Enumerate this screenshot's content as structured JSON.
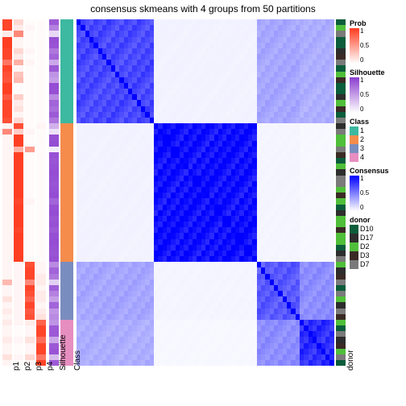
{
  "title": "consensus skmeans with 4 groups from 50 partitions",
  "layout": {
    "heatmapLeft": 95,
    "heatmapWidth": 320,
    "heatmapTop": 24,
    "heatmapHeight": 430
  },
  "palettes": {
    "prob": {
      "low": "#ffffff",
      "high": "#ff3b1f"
    },
    "silhouette": {
      "low": "#ffffff",
      "high": "#8b3dcf"
    },
    "consensus": {
      "low": "#ffffff",
      "high": "#0000ff"
    },
    "gray": "#bfbfbf"
  },
  "classColors": {
    "1": "#3cb9a0",
    "2": "#f58c4b",
    "3": "#7a8dbf",
    "4": "#e68ec0"
  },
  "donorColors": {
    "D10": "#0b5d3b",
    "D17": "#2d2d2d",
    "D2": "#4fbf3a",
    "D3": "#3a2a25",
    "D7": "#7a7a7a"
  },
  "annotationTracks": [
    {
      "id": "p1",
      "x": 3,
      "w": 12,
      "type": "prob"
    },
    {
      "id": "p2",
      "x": 17,
      "w": 12,
      "type": "prob"
    },
    {
      "id": "p3",
      "x": 31,
      "w": 12,
      "type": "prob"
    },
    {
      "id": "p4",
      "x": 45,
      "w": 12,
      "type": "prob"
    },
    {
      "id": "Silhouette",
      "x": 61,
      "w": 12,
      "type": "silhouette"
    },
    {
      "id": "Class",
      "x": 75,
      "w": 16,
      "type": "class"
    }
  ],
  "donorLabelX": 417,
  "classBlocks": [
    {
      "class": 1,
      "count": 18
    },
    {
      "class": 2,
      "count": 24
    },
    {
      "class": 3,
      "count": 10
    },
    {
      "class": 4,
      "count": 8
    }
  ],
  "rows": [
    {
      "p1": 0.95,
      "p2": 0.2,
      "p3": 0.02,
      "p4": 0.02,
      "sil": 0.85,
      "cls": 1,
      "dn": "D10"
    },
    {
      "p1": 0.95,
      "p2": 0.1,
      "p3": 0.05,
      "p4": 0.02,
      "sil": 0.65,
      "cls": 1,
      "dn": "D2"
    },
    {
      "p1": 0.1,
      "p2": 0.6,
      "p3": 0.02,
      "p4": 0.02,
      "sil": 0.2,
      "cls": 1,
      "dn": "D7"
    },
    {
      "p1": 0.98,
      "p2": 0.05,
      "p3": 0.02,
      "p4": 0.02,
      "sil": 0.9,
      "cls": 1,
      "dn": "D10"
    },
    {
      "p1": 0.98,
      "p2": 0.05,
      "p3": 0.02,
      "p4": 0.02,
      "sil": 0.88,
      "cls": 1,
      "dn": "D10"
    },
    {
      "p1": 0.95,
      "p2": 0.2,
      "p3": 0.05,
      "p4": 0.02,
      "sil": 0.7,
      "cls": 1,
      "dn": "D17"
    },
    {
      "p1": 0.95,
      "p2": 0.1,
      "p3": 0.02,
      "p4": 0.02,
      "sil": 0.8,
      "cls": 1,
      "dn": "D3"
    },
    {
      "p1": 0.7,
      "p2": 0.4,
      "p3": 0.05,
      "p4": 0.02,
      "sil": 0.45,
      "cls": 1,
      "dn": "D7"
    },
    {
      "p1": 0.95,
      "p2": 0.05,
      "p3": 0.02,
      "p4": 0.02,
      "sil": 0.85,
      "cls": 1,
      "dn": "D10"
    },
    {
      "p1": 0.9,
      "p2": 0.3,
      "p3": 0.02,
      "p4": 0.02,
      "sil": 0.55,
      "cls": 1,
      "dn": "D2"
    },
    {
      "p1": 0.88,
      "p2": 0.35,
      "p3": 0.02,
      "p4": 0.02,
      "sil": 0.5,
      "cls": 1,
      "dn": "D3"
    },
    {
      "p1": 0.98,
      "p2": 0.02,
      "p3": 0.02,
      "p4": 0.02,
      "sil": 0.92,
      "cls": 1,
      "dn": "D10"
    },
    {
      "p1": 0.98,
      "p2": 0.02,
      "p3": 0.02,
      "p4": 0.02,
      "sil": 0.9,
      "cls": 1,
      "dn": "D10"
    },
    {
      "p1": 0.85,
      "p2": 0.25,
      "p3": 0.02,
      "p4": 0.02,
      "sil": 0.6,
      "cls": 1,
      "dn": "D17"
    },
    {
      "p1": 0.95,
      "p2": 0.1,
      "p3": 0.02,
      "p4": 0.02,
      "sil": 0.8,
      "cls": 1,
      "dn": "D2"
    },
    {
      "p1": 0.95,
      "p2": 0.15,
      "p3": 0.02,
      "p4": 0.02,
      "sil": 0.75,
      "cls": 1,
      "dn": "D3"
    },
    {
      "p1": 0.95,
      "p2": 0.05,
      "p3": 0.02,
      "p4": 0.02,
      "sil": 0.85,
      "cls": 1,
      "dn": "D10"
    },
    {
      "p1": 0.9,
      "p2": 0.2,
      "p3": 0.02,
      "p4": 0.02,
      "sil": 0.7,
      "cls": 1,
      "dn": "D7"
    },
    {
      "p1": 0.05,
      "p2": 0.9,
      "p3": 0.02,
      "p4": 0.05,
      "sil": 0.4,
      "cls": 2,
      "dn": "D17"
    },
    {
      "p1": 0.6,
      "p2": 0.25,
      "p3": 0.05,
      "p4": 0.02,
      "sil": 0.15,
      "cls": 2,
      "dn": "D7"
    },
    {
      "p1": 0.05,
      "p2": 0.98,
      "p3": 0.02,
      "p4": 0.02,
      "sil": 0.9,
      "cls": 2,
      "dn": "D2"
    },
    {
      "p1": 0.05,
      "p2": 0.98,
      "p3": 0.02,
      "p4": 0.02,
      "sil": 0.92,
      "cls": 2,
      "dn": "D2"
    },
    {
      "p1": 0.05,
      "p2": 0.4,
      "p3": 0.5,
      "p4": 0.02,
      "sil": 0.1,
      "cls": 2,
      "dn": "D7"
    },
    {
      "p1": 0.05,
      "p2": 0.98,
      "p3": 0.02,
      "p4": 0.02,
      "sil": 0.9,
      "cls": 2,
      "dn": "D3"
    },
    {
      "p1": 0.05,
      "p2": 0.98,
      "p3": 0.02,
      "p4": 0.02,
      "sil": 0.88,
      "cls": 2,
      "dn": "D10"
    },
    {
      "p1": 0.05,
      "p2": 0.98,
      "p3": 0.02,
      "p4": 0.02,
      "sil": 0.9,
      "cls": 2,
      "dn": "D2"
    },
    {
      "p1": 0.05,
      "p2": 0.98,
      "p3": 0.02,
      "p4": 0.02,
      "sil": 0.92,
      "cls": 2,
      "dn": "D17"
    },
    {
      "p1": 0.05,
      "p2": 0.98,
      "p3": 0.02,
      "p4": 0.02,
      "sil": 0.9,
      "cls": 2,
      "dn": "D7"
    },
    {
      "p1": 0.05,
      "p2": 0.98,
      "p3": 0.02,
      "p4": 0.02,
      "sil": 0.88,
      "cls": 2,
      "dn": "D7"
    },
    {
      "p1": 0.05,
      "p2": 0.98,
      "p3": 0.02,
      "p4": 0.02,
      "sil": 0.9,
      "cls": 2,
      "dn": "D2"
    },
    {
      "p1": 0.05,
      "p2": 0.98,
      "p3": 0.02,
      "p4": 0.02,
      "sil": 0.92,
      "cls": 2,
      "dn": "D3"
    },
    {
      "p1": 0.05,
      "p2": 0.95,
      "p3": 0.05,
      "p4": 0.02,
      "sil": 0.8,
      "cls": 2,
      "dn": "D2"
    },
    {
      "p1": 0.05,
      "p2": 0.98,
      "p3": 0.02,
      "p4": 0.02,
      "sil": 0.9,
      "cls": 2,
      "dn": "D10"
    },
    {
      "p1": 0.05,
      "p2": 0.98,
      "p3": 0.02,
      "p4": 0.02,
      "sil": 0.92,
      "cls": 2,
      "dn": "D17"
    },
    {
      "p1": 0.05,
      "p2": 0.98,
      "p3": 0.02,
      "p4": 0.02,
      "sil": 0.88,
      "cls": 2,
      "dn": "D2"
    },
    {
      "p1": 0.05,
      "p2": 0.98,
      "p3": 0.02,
      "p4": 0.02,
      "sil": 0.9,
      "cls": 2,
      "dn": "D2"
    },
    {
      "p1": 0.05,
      "p2": 0.95,
      "p3": 0.02,
      "p4": 0.02,
      "sil": 0.85,
      "cls": 2,
      "dn": "D3"
    },
    {
      "p1": 0.05,
      "p2": 0.98,
      "p3": 0.02,
      "p4": 0.02,
      "sil": 0.9,
      "cls": 2,
      "dn": "D2"
    },
    {
      "p1": 0.05,
      "p2": 0.98,
      "p3": 0.02,
      "p4": 0.02,
      "sil": 0.92,
      "cls": 2,
      "dn": "D2"
    },
    {
      "p1": 0.05,
      "p2": 0.98,
      "p3": 0.02,
      "p4": 0.02,
      "sil": 0.9,
      "cls": 2,
      "dn": "D10"
    },
    {
      "p1": 0.05,
      "p2": 0.98,
      "p3": 0.02,
      "p4": 0.02,
      "sil": 0.88,
      "cls": 2,
      "dn": "D17"
    },
    {
      "p1": 0.05,
      "p2": 0.98,
      "p3": 0.02,
      "p4": 0.02,
      "sil": 0.9,
      "cls": 2,
      "dn": "D7"
    },
    {
      "p1": 0.05,
      "p2": 0.05,
      "p3": 0.9,
      "p4": 0.05,
      "sil": 0.6,
      "cls": 3,
      "dn": "D2"
    },
    {
      "p1": 0.05,
      "p2": 0.05,
      "p3": 0.95,
      "p4": 0.05,
      "sil": 0.8,
      "cls": 3,
      "dn": "D17"
    },
    {
      "p1": 0.05,
      "p2": 0.05,
      "p3": 0.95,
      "p4": 0.1,
      "sil": 0.7,
      "cls": 3,
      "dn": "D3"
    },
    {
      "p1": 0.35,
      "p2": 0.05,
      "p3": 0.6,
      "p4": 0.1,
      "sil": 0.25,
      "cls": 3,
      "dn": "D7"
    },
    {
      "p1": 0.05,
      "p2": 0.05,
      "p3": 0.95,
      "p4": 0.05,
      "sil": 0.82,
      "cls": 3,
      "dn": "D10"
    },
    {
      "p1": 0.05,
      "p2": 0.05,
      "p3": 0.9,
      "p4": 0.1,
      "sil": 0.65,
      "cls": 3,
      "dn": "D7"
    },
    {
      "p1": 0.15,
      "p2": 0.05,
      "p3": 0.8,
      "p4": 0.1,
      "sil": 0.5,
      "cls": 3,
      "dn": "D2"
    },
    {
      "p1": 0.05,
      "p2": 0.05,
      "p3": 0.95,
      "p4": 0.05,
      "sil": 0.8,
      "cls": 3,
      "dn": "D17"
    },
    {
      "p1": 0.1,
      "p2": 0.05,
      "p3": 0.85,
      "p4": 0.1,
      "sil": 0.55,
      "cls": 3,
      "dn": "D7"
    },
    {
      "p1": 0.05,
      "p2": 0.05,
      "p3": 0.9,
      "p4": 0.15,
      "sil": 0.6,
      "cls": 3,
      "dn": "D3"
    },
    {
      "p1": 0.1,
      "p2": 0.05,
      "p3": 0.1,
      "p4": 0.8,
      "sil": 0.55,
      "cls": 4,
      "dn": "D2"
    },
    {
      "p1": 0.05,
      "p2": 0.02,
      "p3": 0.05,
      "p4": 0.95,
      "sil": 0.85,
      "cls": 4,
      "dn": "D10"
    },
    {
      "p1": 0.05,
      "p2": 0.02,
      "p3": 0.05,
      "p4": 0.95,
      "sil": 0.85,
      "cls": 4,
      "dn": "D7"
    },
    {
      "p1": 0.1,
      "p2": 0.05,
      "p3": 0.15,
      "p4": 0.75,
      "sil": 0.45,
      "cls": 4,
      "dn": "D17"
    },
    {
      "p1": 0.05,
      "p2": 0.02,
      "p3": 0.05,
      "p4": 0.95,
      "sil": 0.85,
      "cls": 4,
      "dn": "D3"
    },
    {
      "p1": 0.05,
      "p2": 0.02,
      "p3": 0.05,
      "p4": 0.95,
      "sil": 0.88,
      "cls": 4,
      "dn": "D2"
    },
    {
      "p1": 0.15,
      "p2": 0.05,
      "p3": 0.2,
      "p4": 0.7,
      "sil": 0.35,
      "cls": 4,
      "dn": "D7"
    },
    {
      "p1": 0.05,
      "p2": 0.02,
      "p3": 0.05,
      "p4": 0.95,
      "sil": 0.85,
      "cls": 4,
      "dn": "D10"
    }
  ],
  "crossBlock": {
    "within": {
      "1": 0.72,
      "2": 0.95,
      "3": 0.65,
      "4": 0.82
    },
    "between": {
      "1-2": 0.05,
      "1-3": 0.35,
      "1-4": 0.32,
      "2-3": 0.04,
      "2-4": 0.03,
      "3-4": 0.45
    }
  },
  "legends": {
    "prob": {
      "title": "Prob",
      "ticks": [
        1,
        0.5,
        0
      ]
    },
    "silhouette": {
      "title": "Silhouette",
      "ticks": [
        1,
        0.5,
        0
      ]
    },
    "class": {
      "title": "Class",
      "items": [
        "1",
        "2",
        "3",
        "4"
      ]
    },
    "consensus": {
      "title": "Consensus",
      "ticks": [
        1,
        0.5,
        0
      ]
    },
    "donor": {
      "title": "donor",
      "items": [
        "D10",
        "D17",
        "D2",
        "D3",
        "D7"
      ]
    }
  },
  "labels": {
    "p1": "p1",
    "p2": "p2",
    "p3": "p3",
    "p4": "p4",
    "silhouette": "Silhouette",
    "class": "Class",
    "donor": "donor"
  }
}
